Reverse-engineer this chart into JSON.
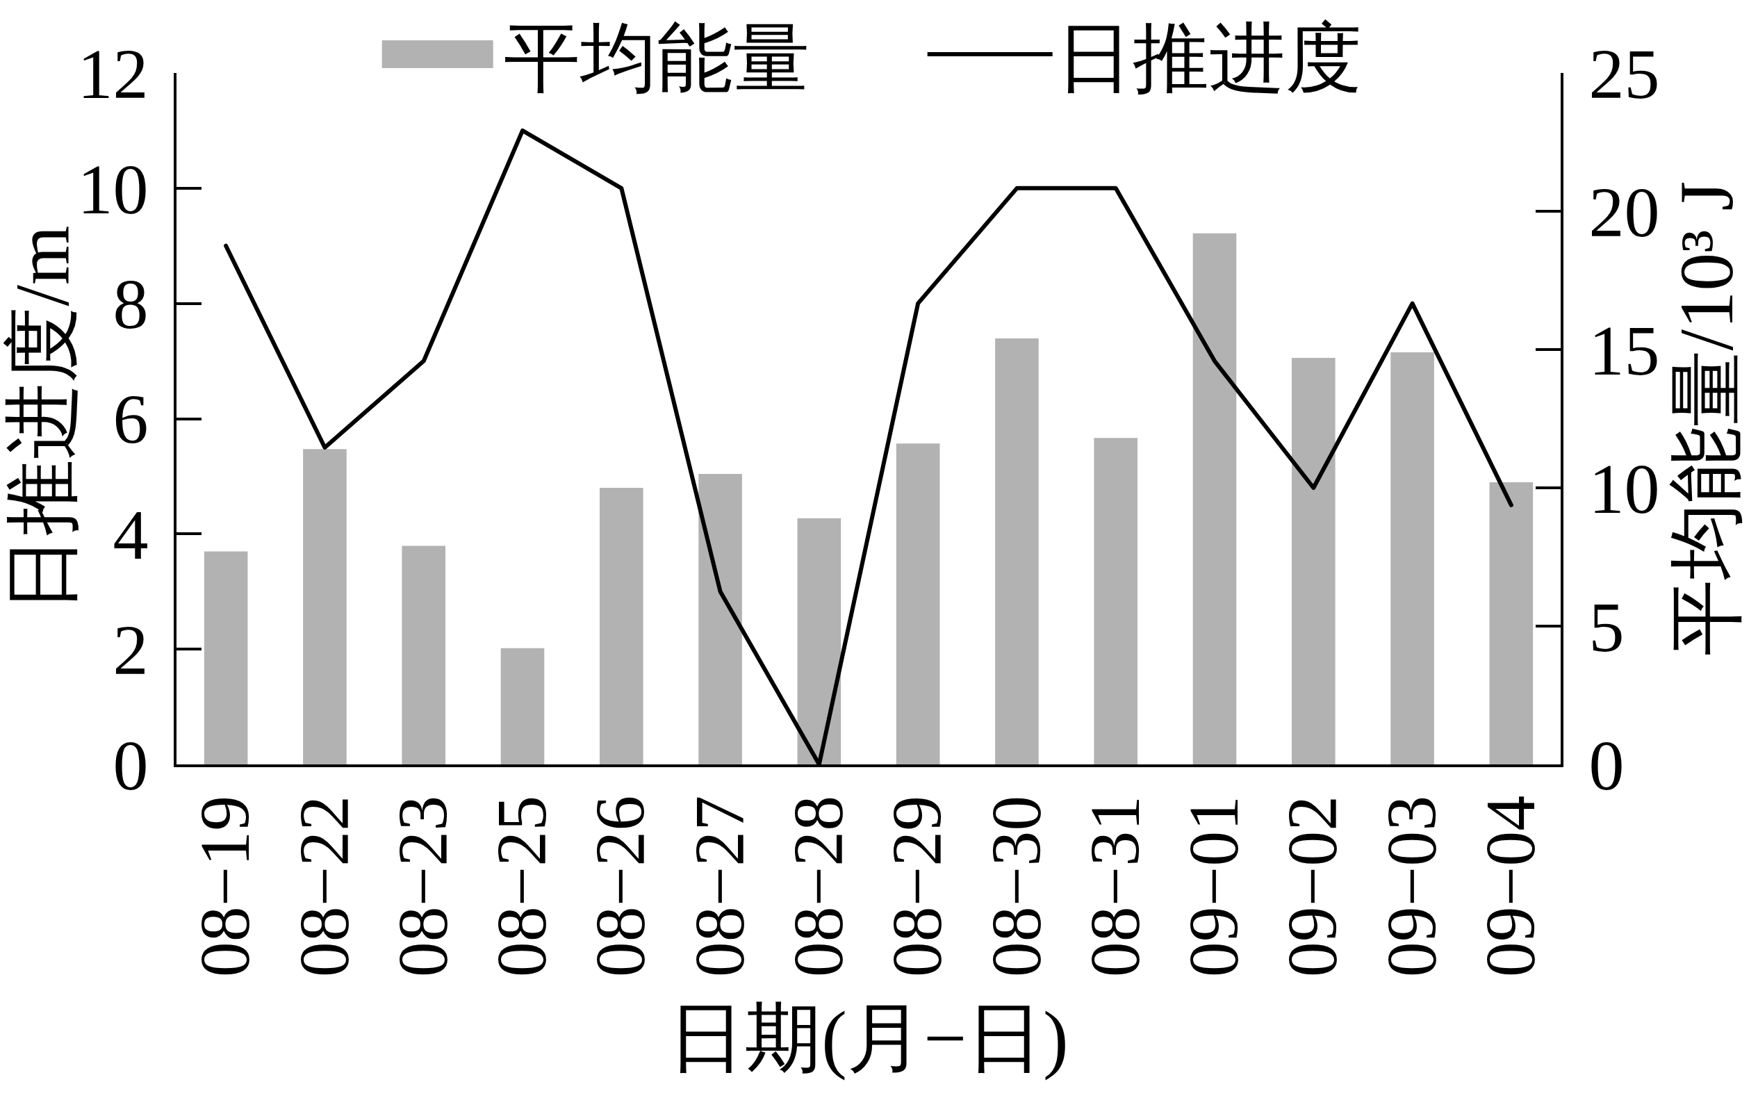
{
  "chart_data": {
    "type": "bar",
    "xlabel": "日期(月−日)",
    "ylabel": "日推进度/m",
    "y2label": "平均能量/10³ J",
    "categories": [
      "08−19",
      "08−22",
      "08−23",
      "08−25",
      "08−26",
      "08−27",
      "08−28",
      "08−29",
      "08−30",
      "08−31",
      "09−01",
      "09−02",
      "09−03",
      "09−04"
    ],
    "series": [
      {
        "name": "平均能量",
        "axis": "y2",
        "color": "#b2b2b2",
        "values": [
          7.7,
          11.4,
          7.9,
          4.2,
          10.0,
          10.5,
          8.9,
          11.6,
          15.4,
          11.8,
          19.2,
          14.7,
          14.9,
          10.2
        ]
      },
      {
        "name": "日推进度",
        "type": "line",
        "color": "#000000",
        "values": [
          9,
          5.5,
          7,
          11,
          10,
          3,
          0,
          8,
          10,
          10,
          7,
          4.8,
          8,
          4.5
        ]
      }
    ],
    "ylim": [
      0,
      12
    ],
    "yticks": [
      0,
      2,
      4,
      6,
      8,
      10,
      12
    ],
    "y2lim": [
      0,
      25
    ],
    "y2ticks": [
      0,
      5,
      10,
      15,
      20,
      25
    ],
    "legend": "top"
  }
}
